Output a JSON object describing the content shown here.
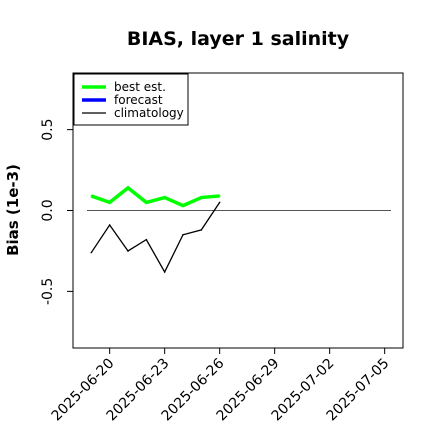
{
  "chart_data": {
    "type": "line",
    "title": "BIAS, layer 1 salinity",
    "ylabel": "Bias (1e-3)",
    "xlabel": "",
    "ylim": [
      -0.85,
      0.85
    ],
    "y_ticks": [
      -0.5,
      0.0,
      0.5
    ],
    "y_tick_labels": [
      "-0.5",
      "0.0",
      "0.5"
    ],
    "xlim": [
      "2025-06-18",
      "2025-07-06"
    ],
    "x_ticks": [
      "2025-06-20",
      "2025-06-23",
      "2025-06-26",
      "2025-06-29",
      "2025-07-02",
      "2025-07-05"
    ],
    "x_tick_labels": [
      "2025-06-20",
      "2025-06-23",
      "2025-06-26",
      "2025-06-29",
      "2025-07-02",
      "2025-07-05"
    ],
    "highlighted_tick": "2025-06-26",
    "highlight_color": "#228b22",
    "legend": {
      "placement": "top-left",
      "entries": [
        {
          "label": "best est.",
          "color": "#00ff00"
        },
        {
          "label": "forecast",
          "color": "#0000ff"
        },
        {
          "label": "climatology",
          "color": "#000000"
        }
      ]
    },
    "reference_line": {
      "y": 0.0,
      "color": "#555555"
    },
    "series": [
      {
        "name": "best est.",
        "color": "#00ff00",
        "x": [
          "2025-06-19",
          "2025-06-20",
          "2025-06-21",
          "2025-06-22",
          "2025-06-23",
          "2025-06-24",
          "2025-06-25",
          "2025-06-26"
        ],
        "values": [
          0.09,
          0.05,
          0.14,
          0.05,
          0.08,
          0.03,
          0.08,
          0.09
        ]
      },
      {
        "name": "forecast",
        "color": "#0000ff",
        "x": [],
        "values": []
      },
      {
        "name": "climatology",
        "color": "#000000",
        "x": [
          "2025-06-19",
          "2025-06-20",
          "2025-06-21",
          "2025-06-22",
          "2025-06-23",
          "2025-06-24",
          "2025-06-25",
          "2025-06-26"
        ],
        "values": [
          -0.26,
          -0.09,
          -0.25,
          -0.18,
          -0.38,
          -0.15,
          -0.12,
          0.05
        ]
      }
    ]
  }
}
